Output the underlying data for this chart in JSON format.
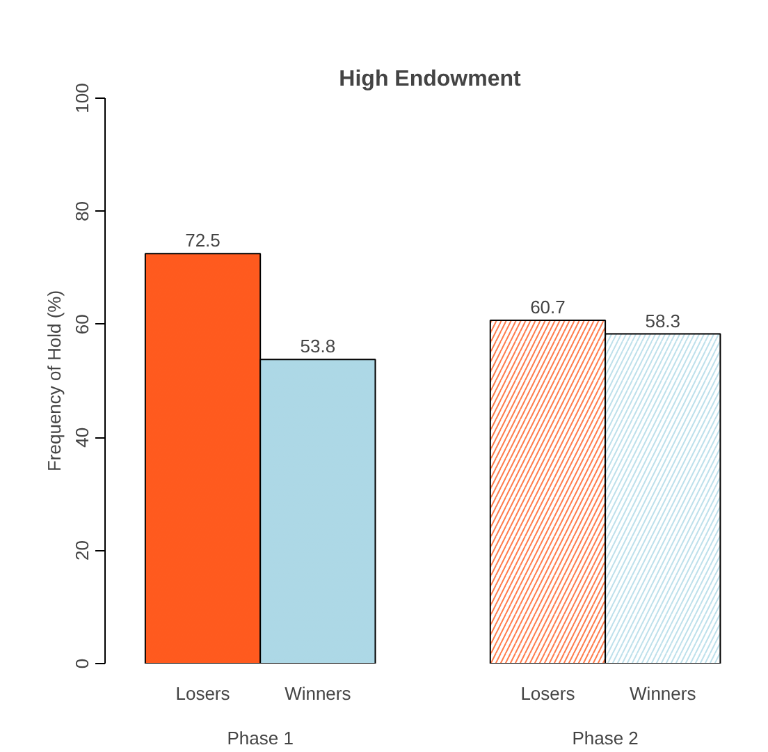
{
  "chart_data": {
    "type": "bar",
    "title": "High Endowment",
    "ylabel": "Frequency of Hold (%)",
    "categories": [
      "Phase 1",
      "Phase 2"
    ],
    "series": [
      {
        "name": "Losers",
        "color": "#ff5a1e",
        "colors": [
          "#ff5a1e",
          "#ffffff"
        ],
        "values": [
          72.5,
          60.7
        ]
      },
      {
        "name": "Winners",
        "color": "#add8e6",
        "colors": [
          "#add8e6",
          "#ffffff"
        ],
        "values": [
          53.8,
          58.3
        ]
      }
    ],
    "ylim": [
      0,
      100
    ],
    "yticks": [
      0,
      20,
      40,
      60,
      80,
      100
    ],
    "data_labels": true
  }
}
